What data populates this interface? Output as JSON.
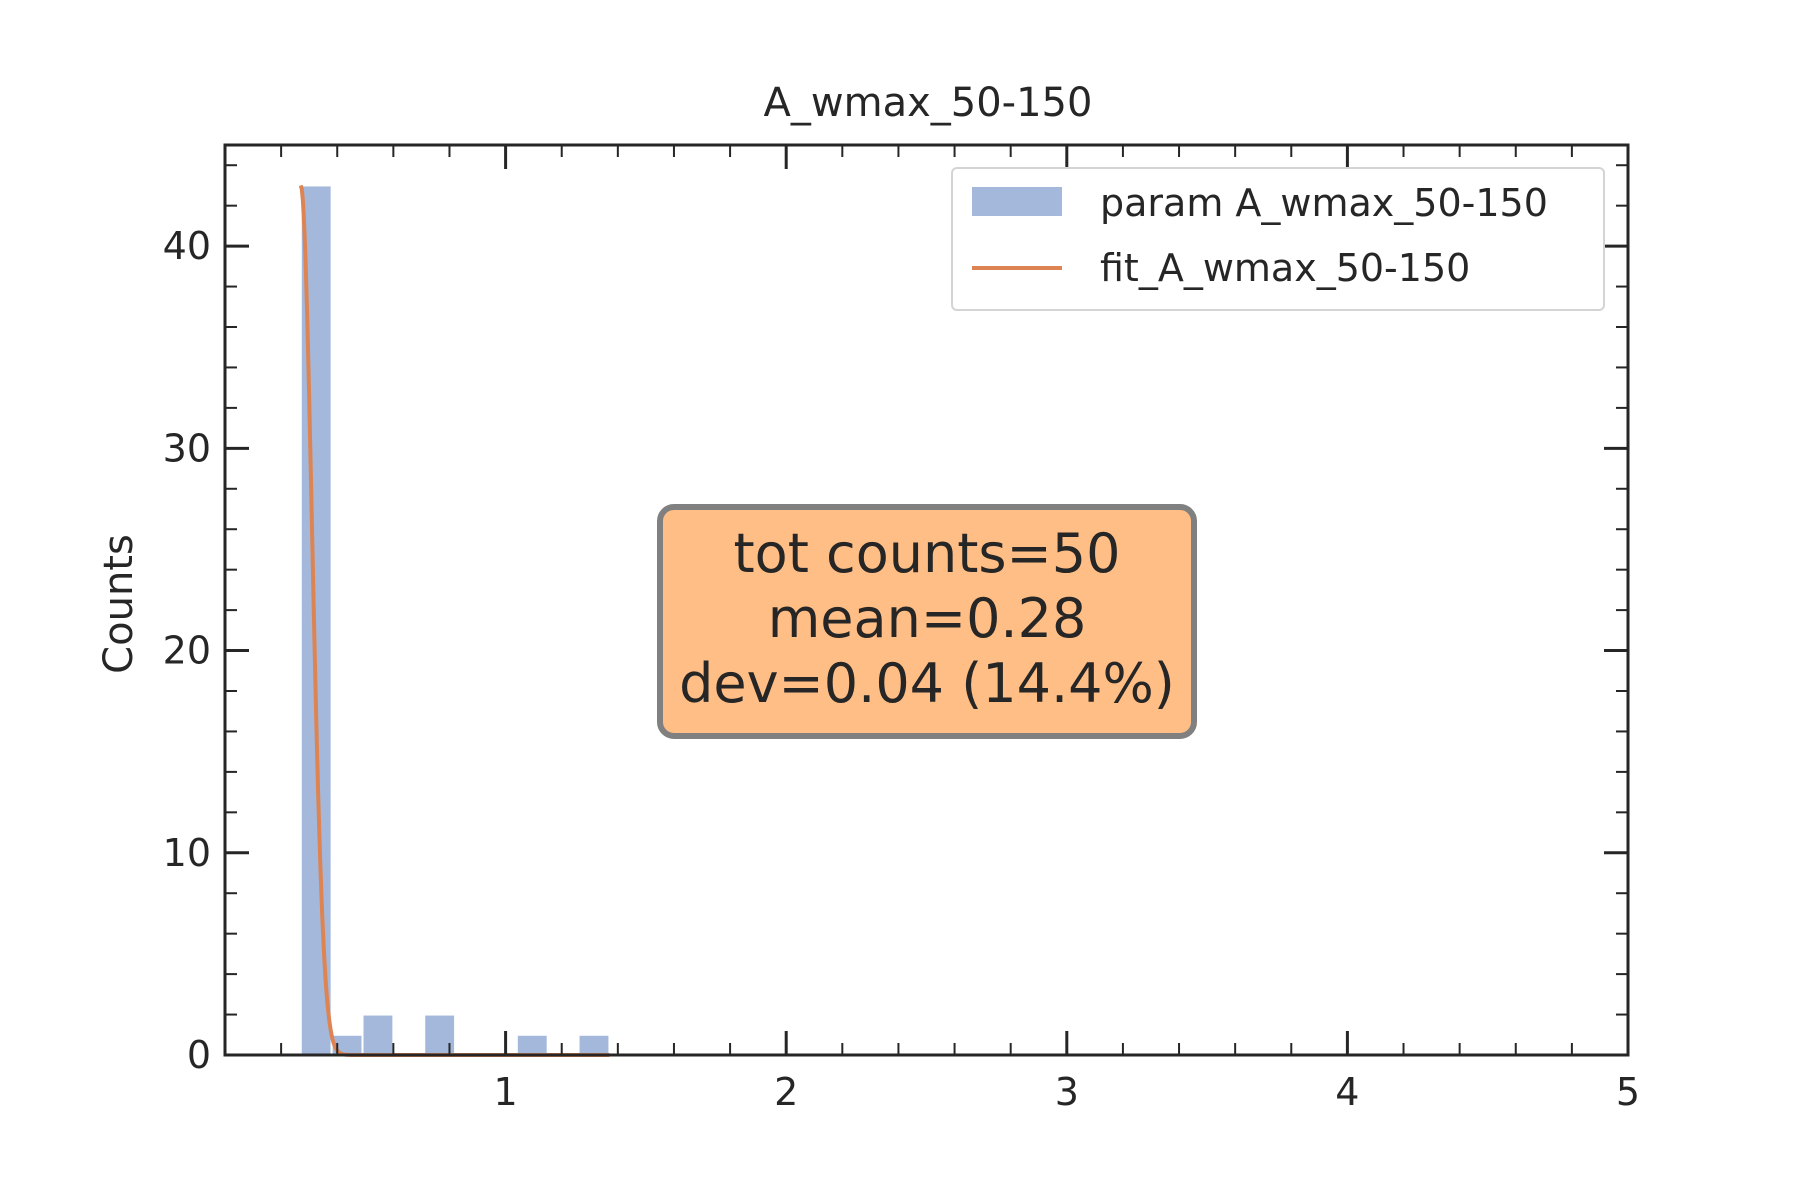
{
  "chart_data": {
    "type": "bar",
    "title": "A_wmax_50-150",
    "xlabel": "",
    "ylabel": "Counts",
    "xlim": [
      0,
      5
    ],
    "ylim": [
      0,
      45
    ],
    "grid": false,
    "legend_position": "top-right",
    "x_ticks": [
      {
        "value": 1,
        "label": "1"
      },
      {
        "value": 2,
        "label": "2"
      },
      {
        "value": 3,
        "label": "3"
      },
      {
        "value": 4,
        "label": "4"
      },
      {
        "value": 5,
        "label": "5"
      }
    ],
    "y_ticks": [
      {
        "value": 0,
        "label": "0"
      },
      {
        "value": 10,
        "label": "10"
      },
      {
        "value": 20,
        "label": "20"
      },
      {
        "value": 30,
        "label": "30"
      },
      {
        "value": 40,
        "label": "40"
      }
    ],
    "series": [
      {
        "name": "param A_wmax_50-150",
        "kind": "histogram",
        "color": "#a4b8dc",
        "bins": [
          {
            "x0": 0.27,
            "x1": 0.38,
            "count": 43
          },
          {
            "x0": 0.38,
            "x1": 0.49,
            "count": 1
          },
          {
            "x0": 0.49,
            "x1": 0.6,
            "count": 2
          },
          {
            "x0": 0.6,
            "x1": 0.71,
            "count": 0
          },
          {
            "x0": 0.71,
            "x1": 0.82,
            "count": 2
          },
          {
            "x0": 0.82,
            "x1": 0.93,
            "count": 0
          },
          {
            "x0": 0.93,
            "x1": 1.04,
            "count": 0
          },
          {
            "x0": 1.04,
            "x1": 1.15,
            "count": 1
          },
          {
            "x0": 1.15,
            "x1": 1.26,
            "count": 0
          },
          {
            "x0": 1.26,
            "x1": 1.37,
            "count": 1
          }
        ]
      },
      {
        "name": "fit_A_wmax_50-150",
        "kind": "line",
        "color": "#dd8452",
        "fit": {
          "amplitude": 43,
          "center": 0.27,
          "sigma": 0.04,
          "x_start": 0.27,
          "x_end": 1.37
        }
      }
    ],
    "annotation": {
      "lines": [
        "tot counts=50",
        "mean=0.28",
        "dev=0.04 (14.4%)"
      ],
      "background_color": "#ffbe85",
      "border_color": "#808080"
    }
  }
}
